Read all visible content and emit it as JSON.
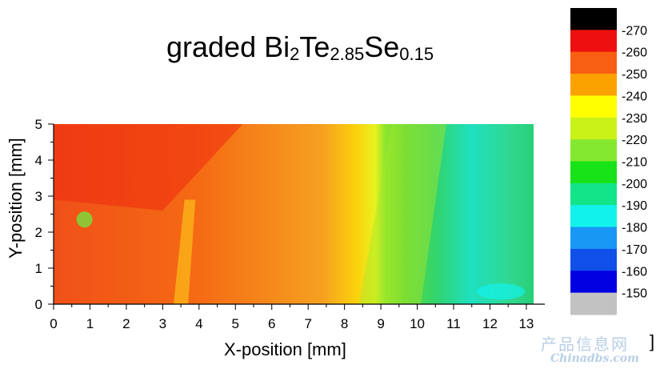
{
  "chart_data": {
    "type": "heatmap",
    "title": {
      "main": "graded Bi",
      "sub1": "2",
      "mid1": "Te",
      "sub2": "2.85",
      "mid2": "Se",
      "sub3": "0.15"
    },
    "xlabel": "X-position [mm]",
    "ylabel": "Y-position [mm]",
    "xlim": [
      0,
      13.2
    ],
    "ylim": [
      0,
      5
    ],
    "x_ticks": [
      "0",
      "1",
      "2",
      "3",
      "4",
      "5",
      "6",
      "7",
      "8",
      "9",
      "10",
      "11",
      "12",
      "13"
    ],
    "y_ticks": [
      "0",
      "1",
      "2",
      "3",
      "4",
      "5"
    ],
    "colorbar": {
      "levels": [
        {
          "label": "-270",
          "color": "#000000"
        },
        {
          "label": "-260",
          "color": "#ee1010"
        },
        {
          "label": "-250",
          "color": "#f75f12"
        },
        {
          "label": "-240",
          "color": "#fca200"
        },
        {
          "label": "-230",
          "color": "#ffff00"
        },
        {
          "label": "-220",
          "color": "#c8f218"
        },
        {
          "label": "-210",
          "color": "#84e830"
        },
        {
          "label": "-200",
          "color": "#18e218"
        },
        {
          "label": "-190",
          "color": "#12e48a"
        },
        {
          "label": "-180",
          "color": "#12f2ec"
        },
        {
          "label": "-170",
          "color": "#1898f4"
        },
        {
          "label": "-160",
          "color": "#1050e8"
        },
        {
          "label": "-150",
          "color": "#0000e0"
        },
        {
          "label": "",
          "color": "#c2c2c2"
        }
      ]
    },
    "regions_x_mm": [
      {
        "from": 0,
        "to": 8.3,
        "value": -255
      },
      {
        "from": 8.3,
        "to": 9.6,
        "value": -235
      },
      {
        "from": 9.6,
        "to": 10.8,
        "value": -215
      },
      {
        "from": 10.8,
        "to": 13.2,
        "value": -200
      }
    ]
  },
  "watermark": {
    "line1": "产品信息网",
    "line2": "Chinadbs.com"
  },
  "bracket": "]"
}
